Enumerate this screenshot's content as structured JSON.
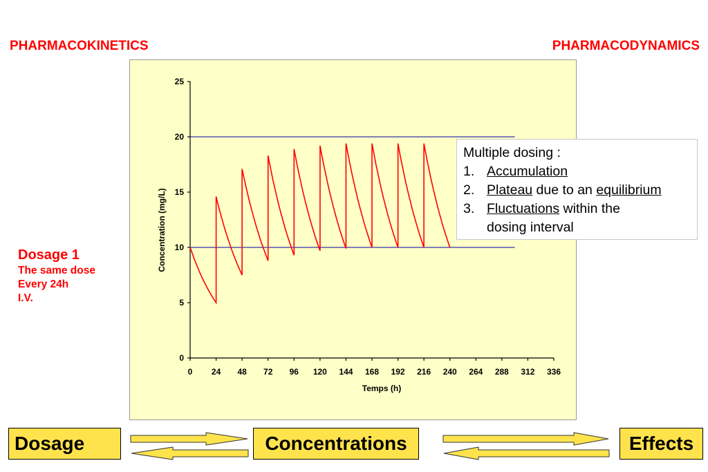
{
  "header": {
    "left_title": "PHARMACOKINETICS",
    "right_title": "PHARMACODYNAMICS"
  },
  "dosage_note": {
    "title": "Dosage 1",
    "lines": [
      "The same dose",
      "Every 24h",
      "I.V."
    ]
  },
  "annotation": {
    "heading": "Multiple dosing :",
    "items": [
      {
        "num": "1.",
        "underlined": "Accumulation",
        "rest": ""
      },
      {
        "num": "2.",
        "underlined": "Plateau",
        "rest": " due to an ",
        "underlined2": "equilibrium"
      },
      {
        "num": "3.",
        "underlined": "Fluctuations",
        "rest": " within the",
        "continuation": "dosing interval"
      }
    ]
  },
  "flow": {
    "dosage": "Dosage",
    "concentrations": "Concentrations",
    "effects": "Effects"
  },
  "colors": {
    "curve": "#ff0000",
    "reference_lines": "#3333aa",
    "panel_bg": "#ffffc8",
    "box_bg": "#ffe34d",
    "highlight_text": "#ff0000"
  },
  "chart_data": {
    "type": "line",
    "xlabel": "Temps (h)",
    "ylabel": "Concentration (mg/L)",
    "xlim": [
      0,
      336
    ],
    "ylim": [
      0,
      25
    ],
    "x_ticks": [
      0,
      24,
      48,
      72,
      96,
      120,
      144,
      168,
      192,
      216,
      240,
      264,
      288,
      312,
      336
    ],
    "y_ticks": [
      0,
      5,
      10,
      15,
      20,
      25
    ],
    "grid": false,
    "reference_lines": [
      10,
      20
    ],
    "reference_lines_xrange": [
      0,
      300
    ],
    "series": [
      {
        "x": [
          0,
          24,
          24,
          48,
          48,
          72,
          72,
          96,
          96,
          120,
          120,
          144,
          144,
          168,
          168,
          192,
          192,
          216,
          216,
          240
        ],
        "y": [
          10,
          5,
          14.6,
          7.5,
          17.1,
          8.8,
          18.3,
          9.3,
          18.9,
          9.7,
          19.2,
          9.9,
          19.4,
          10.0,
          19.4,
          10.0,
          19.4,
          10.0,
          19.4,
          10.0
        ]
      }
    ]
  }
}
